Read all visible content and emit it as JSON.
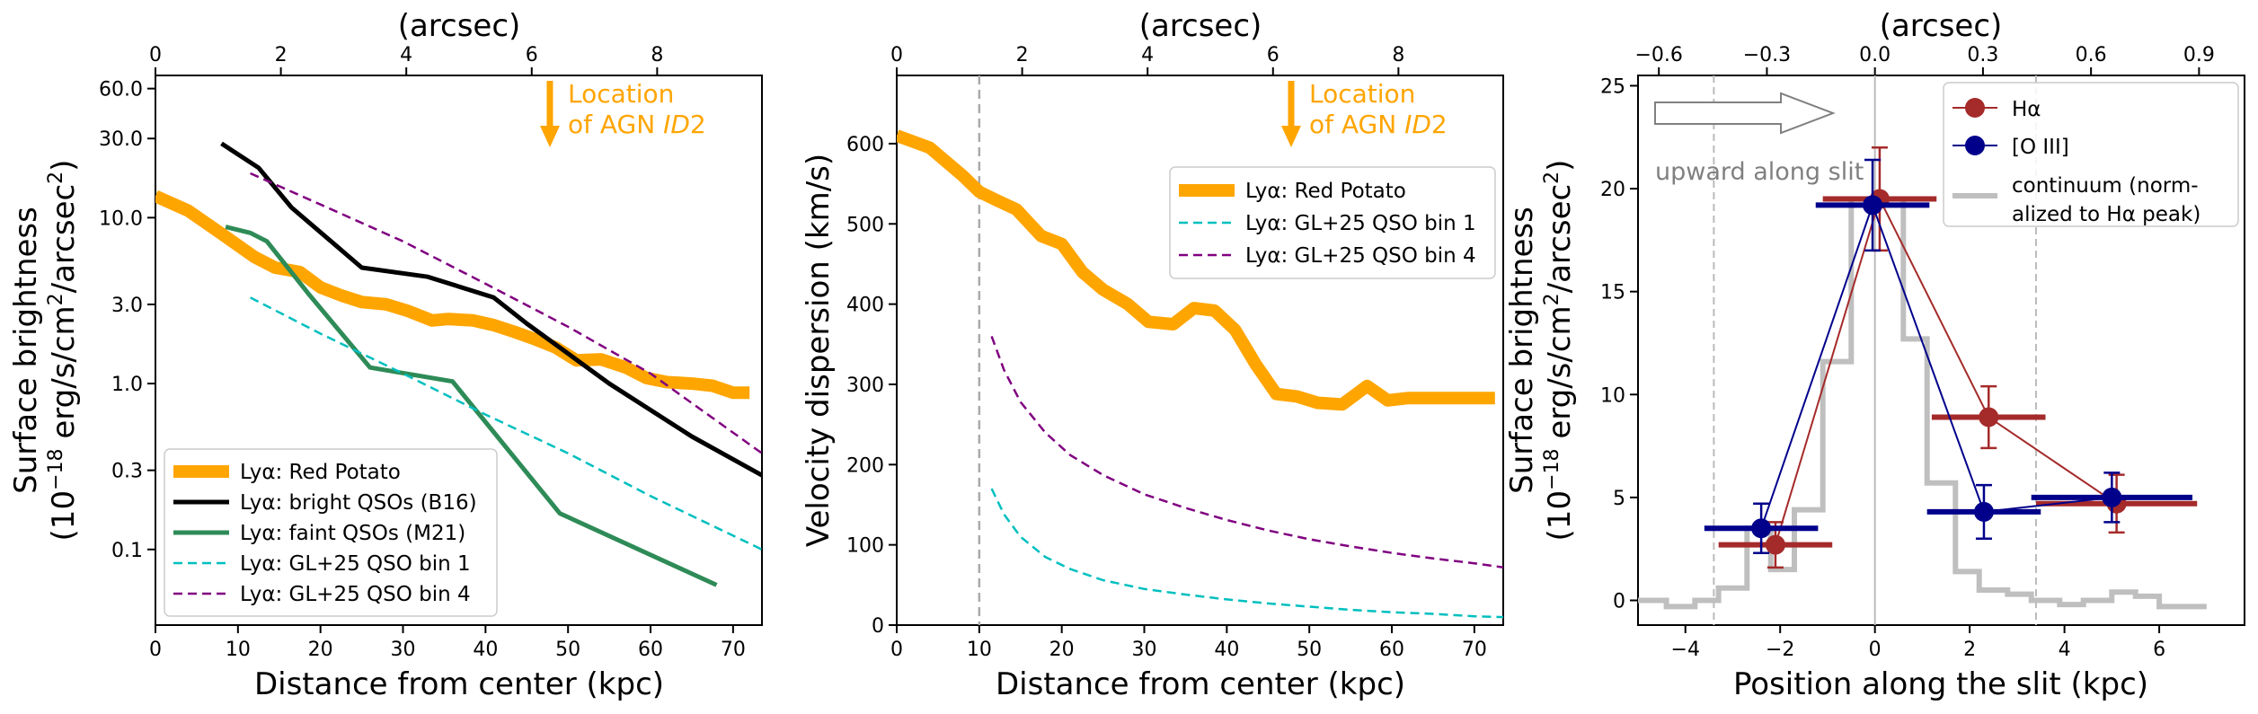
{
  "chart_data": [
    {
      "type": "line",
      "id": "p1",
      "xlabel": "Distance from center (kpc)",
      "ylabel_line1": "Surface brightness",
      "ylabel_line2": "(10",
      "ylabel_sup1": "−18",
      "ylabel_mid": " erg/s/cm",
      "ylabel_sup2": "2",
      "ylabel_end": "/arcsec",
      "ylabel_sup3": "2",
      "ylabel_close": ")",
      "top_xlabel": "(arcsec)",
      "xlim": [
        0,
        73.5
      ],
      "ylim": [
        0.035,
        72
      ],
      "yscale": "log",
      "xticks": [
        0,
        10,
        20,
        30,
        40,
        50,
        60,
        70
      ],
      "xtick_labels": [
        "0",
        "10",
        "20",
        "30",
        "40",
        "50",
        "60",
        "70"
      ],
      "yticks": [
        0.1,
        0.3,
        1.0,
        3.0,
        10.0,
        30.0,
        60.0
      ],
      "ytick_labels": [
        "0.1",
        "0.3",
        "1.0",
        "3.0",
        "10.0",
        "30.0",
        "60.0"
      ],
      "top_xticks": [
        0,
        2,
        4,
        6,
        8
      ],
      "top_xtick_labels": [
        "0",
        "2",
        "4",
        "6",
        "8"
      ],
      "top_scale_kpc_per_arcsec": 7.6,
      "annotation": {
        "line1": "Location",
        "line2_prefix": "of AGN ",
        "line2_italic": "ID",
        "line2_suffix": "2",
        "x": 47.8,
        "color": "#FFA500"
      },
      "legend_position": "lower-left",
      "series": [
        {
          "name": "Lyα: Red Potato",
          "style": "thick",
          "color": "#FFA500",
          "x": [
            0,
            4,
            8,
            12,
            14.5,
            17.5,
            20,
            22.5,
            25,
            28,
            30.5,
            33.5,
            35.5,
            38.5,
            41,
            43.5,
            46,
            48.5,
            51,
            54,
            57,
            59.5,
            62,
            65,
            67.5,
            70,
            72
          ],
          "y": [
            13.5,
            11,
            8,
            5.8,
            5.0,
            4.7,
            3.8,
            3.4,
            3.1,
            3.0,
            2.75,
            2.4,
            2.45,
            2.4,
            2.25,
            2.05,
            1.85,
            1.65,
            1.38,
            1.4,
            1.25,
            1.08,
            1.02,
            1.0,
            0.97,
            0.88,
            0.88
          ]
        },
        {
          "name": "Lyα: bright QSOs (B16)",
          "style": "solid",
          "color": "#000000",
          "x": [
            8,
            12.5,
            16.5,
            25,
            33,
            41,
            45,
            55,
            65,
            73.5
          ],
          "y": [
            28,
            20,
            11.5,
            5.0,
            4.4,
            3.3,
            2.3,
            1.0,
            0.48,
            0.28
          ]
        },
        {
          "name": "Lyα: faint QSOs (M21)",
          "style": "solid",
          "color": "#2E8B57",
          "x": [
            8.5,
            11.5,
            13.5,
            18.5,
            26,
            36,
            49,
            68
          ],
          "y": [
            8.8,
            8.1,
            7.2,
            3.5,
            1.25,
            1.03,
            0.165,
            0.061
          ]
        },
        {
          "name": "Lyα: GL+25 QSO bin 1",
          "style": "dashed",
          "color": "#00BFBF",
          "x": [
            11.5,
            20,
            30,
            40,
            50,
            60,
            73.5
          ],
          "y": [
            3.3,
            2.0,
            1.15,
            0.65,
            0.38,
            0.21,
            0.1
          ]
        },
        {
          "name": "Lyα: GL+25 QSO bin 4",
          "style": "dashed",
          "color": "#800080",
          "x": [
            11.5,
            20,
            30,
            40,
            50,
            60,
            73.5
          ],
          "y": [
            18.5,
            12,
            7.2,
            4.0,
            2.2,
            1.15,
            0.38
          ]
        }
      ]
    },
    {
      "type": "line",
      "id": "p2",
      "xlabel": "Distance from center (kpc)",
      "ylabel": "Velocity dispersion (km/s)",
      "top_xlabel": "(arcsec)",
      "xlim": [
        0,
        73.5
      ],
      "ylim": [
        0,
        685
      ],
      "xticks": [
        0,
        10,
        20,
        30,
        40,
        50,
        60,
        70
      ],
      "xtick_labels": [
        "0",
        "10",
        "20",
        "30",
        "40",
        "50",
        "60",
        "70"
      ],
      "yticks": [
        0,
        100,
        200,
        300,
        400,
        500,
        600
      ],
      "ytick_labels": [
        "0",
        "100",
        "200",
        "300",
        "400",
        "500",
        "600"
      ],
      "top_xticks": [
        0,
        2,
        4,
        6,
        8
      ],
      "top_xtick_labels": [
        "0",
        "2",
        "4",
        "6",
        "8"
      ],
      "top_scale_kpc_per_arcsec": 7.6,
      "vline_x": 10,
      "annotation": {
        "line1": "Location",
        "line2_prefix": "of AGN ",
        "line2_italic": "ID",
        "line2_suffix": "2",
        "x": 47.8,
        "color": "#FFA500"
      },
      "legend_position": "upper-right",
      "series": [
        {
          "name": "Lyα: Red Potato",
          "style": "thick",
          "color": "#FFA500",
          "x": [
            0,
            4,
            8,
            10,
            12,
            14.5,
            17.5,
            20,
            22.5,
            25,
            28,
            30.5,
            33.5,
            36,
            38.5,
            41,
            43.5,
            46,
            48.5,
            51,
            54,
            57,
            59.5,
            62,
            64.5,
            67,
            69.5,
            72.5
          ],
          "y": [
            610,
            595,
            560,
            540,
            530,
            518,
            485,
            475,
            440,
            418,
            400,
            378,
            375,
            395,
            392,
            368,
            325,
            288,
            285,
            277,
            275,
            298,
            280,
            283,
            283,
            283,
            283,
            283
          ]
        },
        {
          "name": "Lyα: GL+25 QSO bin 1",
          "style": "dashed",
          "color": "#00BFBF",
          "x": [
            11.5,
            13,
            15,
            18,
            21,
            25,
            30,
            35,
            40,
            45,
            50,
            55,
            60,
            65,
            70,
            73.5
          ],
          "y": [
            170,
            138,
            110,
            85,
            70,
            56,
            45,
            38,
            32,
            27,
            23,
            19,
            16,
            14,
            11,
            10
          ]
        },
        {
          "name": "Lyα: GL+25 QSO bin 4",
          "style": "dashed",
          "color": "#800080",
          "x": [
            11.5,
            13,
            15,
            18,
            21,
            25,
            30,
            35,
            40,
            45,
            50,
            55,
            60,
            65,
            70,
            73.5
          ],
          "y": [
            360,
            318,
            278,
            240,
            212,
            187,
            163,
            146,
            131,
            118,
            107,
            98,
            90,
            83,
            77,
            72
          ]
        }
      ]
    },
    {
      "type": "scatter",
      "id": "p3",
      "xlabel": "Position along the slit (kpc)",
      "ylabel_line1": "Surface brightness",
      "ylabel_line2": "(10",
      "ylabel_sup1": "−18",
      "ylabel_mid": " erg/s/cm",
      "ylabel_sup2": "2",
      "ylabel_end": "/arcsec",
      "ylabel_sup3": "2",
      "ylabel_close": ")",
      "top_xlabel": "(arcsec)",
      "xlim": [
        -5,
        7.8
      ],
      "ylim": [
        -1.2,
        25.5
      ],
      "xticks": [
        -4,
        -2,
        0,
        2,
        4,
        6
      ],
      "xtick_labels": [
        "−4",
        "−2",
        "0",
        "2",
        "4",
        "6"
      ],
      "yticks": [
        0,
        5,
        10,
        15,
        20,
        25
      ],
      "ytick_labels": [
        "0",
        "5",
        "10",
        "15",
        "20",
        "25"
      ],
      "top_xticks": [
        -0.6,
        -0.3,
        0.0,
        0.3,
        0.6,
        0.9
      ],
      "top_xtick_labels": [
        "−0.6",
        "−0.3",
        "0.0",
        "0.3",
        "0.6",
        "0.9"
      ],
      "top_scale_kpc_per_arcsec": 7.6,
      "vlines_dashed": [
        -3.4,
        3.4
      ],
      "vline_solid": 0,
      "arrow_label": "upward along slit",
      "legend_position": "upper-right",
      "continuum": {
        "name": "continuum (norm-",
        "name2": "alized to Hα peak)",
        "color": "#BFBFBF",
        "edges": [
          -5,
          -4.4,
          -3.8,
          -3.3,
          -2.7,
          -2.2,
          -1.7,
          -1.1,
          -0.5,
          0.0,
          0.6,
          1.1,
          1.7,
          2.2,
          2.8,
          3.3,
          3.9,
          4.4,
          5.0,
          5.5,
          6.0,
          6.6,
          7.0
        ],
        "values": [
          0,
          -0.3,
          0,
          0.6,
          3.5,
          1.5,
          4.4,
          11.6,
          19.5,
          19.5,
          12.7,
          5.7,
          1.4,
          0.5,
          0.3,
          0,
          -0.2,
          0,
          0.4,
          0.2,
          -0.3,
          -0.3
        ]
      },
      "series": [
        {
          "name": "Hα",
          "color": "#A52A2A",
          "x": [
            -2.1,
            0.1,
            2.4,
            5.1
          ],
          "y": [
            2.7,
            19.5,
            8.9,
            4.7
          ],
          "xerr": [
            1.2,
            1.2,
            1.2,
            1.7
          ],
          "yerr": [
            1.1,
            2.5,
            1.5,
            1.4
          ]
        },
        {
          "name": "[O III]",
          "color": "#00008B",
          "x": [
            -2.4,
            -0.05,
            2.3,
            5.0
          ],
          "y": [
            3.5,
            19.2,
            4.3,
            5.0
          ],
          "xerr": [
            1.2,
            1.2,
            1.2,
            1.7
          ],
          "yerr": [
            1.2,
            2.2,
            1.3,
            1.2
          ]
        }
      ]
    }
  ]
}
